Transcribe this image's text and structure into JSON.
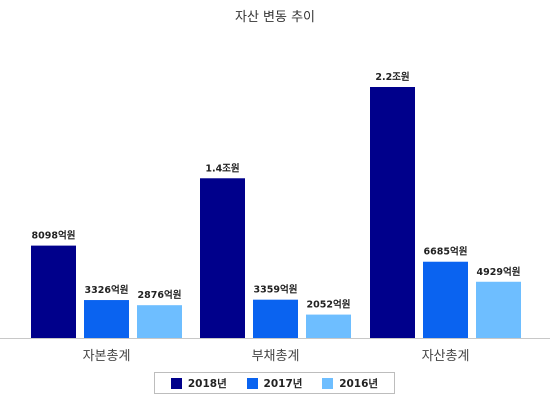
{
  "chart_data": {
    "type": "bar",
    "title": "자산 변동 추이",
    "categories": [
      "자본총계",
      "부채총계",
      "자산총계"
    ],
    "unit": "억원",
    "series": [
      {
        "name": "2018년",
        "color": "#00008B",
        "values": [
          8098,
          14000,
          22000
        ],
        "labels": [
          "8098억원",
          "1.4조원",
          "2.2조원"
        ]
      },
      {
        "name": "2017년",
        "color": "#0A63F0",
        "values": [
          3326,
          3359,
          6685
        ],
        "labels": [
          "3326억원",
          "3359억원",
          "6685억원"
        ]
      },
      {
        "name": "2016년",
        "color": "#6EBEFF",
        "values": [
          2876,
          2052,
          4929
        ],
        "labels": [
          "2876억원",
          "2052억원",
          "4929억원"
        ]
      }
    ],
    "ylim": [
      0,
      22000
    ],
    "grid": false,
    "legend_position": "bottom"
  }
}
